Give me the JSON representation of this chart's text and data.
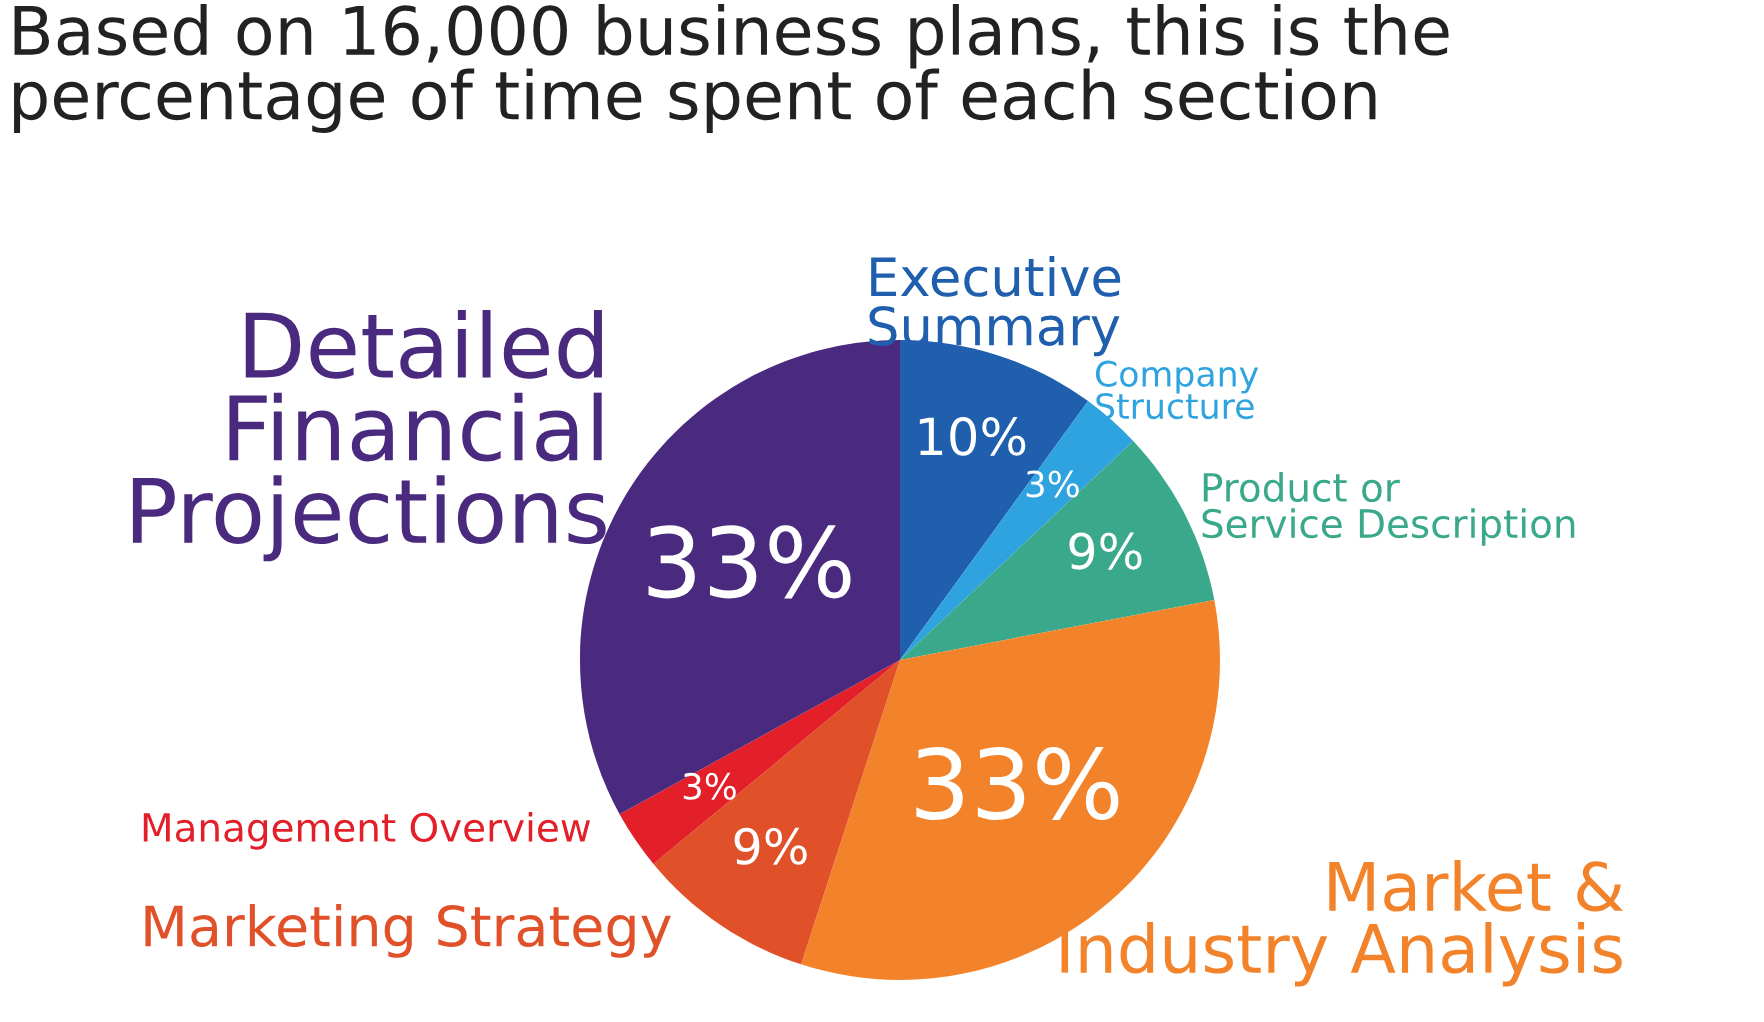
{
  "chart_data": {
    "type": "pie",
    "title": "Based on 16,000 business plans, this is the\npercentage of time spent of each section",
    "categories": [
      "Executive\nSummary",
      "Company\nStructure",
      "Product or\nService Description",
      "Market &\nIndustry Analysis",
      "Marketing Strategy",
      "Management Overview",
      "Detailed\nFinancial\nProjections"
    ],
    "values": [
      10,
      3,
      9,
      33,
      9,
      3,
      33
    ],
    "value_labels": [
      "10%",
      "3%",
      "9%",
      "33%",
      "9%",
      "3%",
      "33%"
    ],
    "colors": [
      "#1f5fae",
      "#2ea3e0",
      "#3aa88a",
      "#f2832a",
      "#e0512a",
      "#e3202a",
      "#4a2a7e"
    ]
  }
}
